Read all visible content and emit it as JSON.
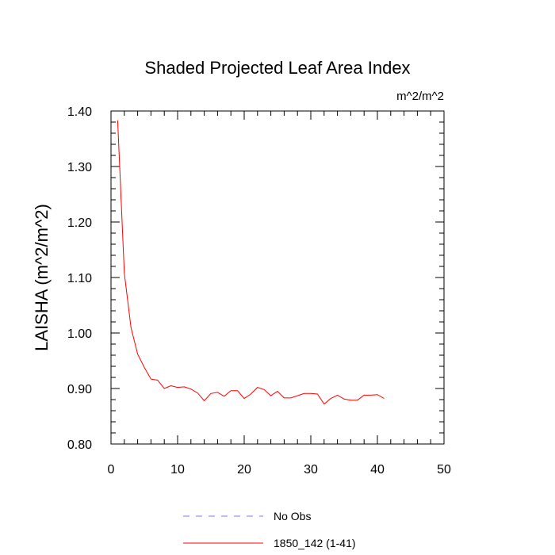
{
  "chart_data": {
    "type": "line",
    "title": "Shaded Projected Leaf Area Index",
    "units_label": "m^2/m^2",
    "xlabel": "",
    "ylabel": "LAISHA  (m^2/m^2)",
    "xlim": [
      0,
      50
    ],
    "ylim": [
      0.8,
      1.4
    ],
    "x_ticks": [
      0,
      10,
      20,
      30,
      40,
      50
    ],
    "x_tick_labels": [
      "0",
      "10",
      "20",
      "30",
      "40",
      "50"
    ],
    "y_ticks": [
      0.8,
      0.9,
      1.0,
      1.1,
      1.2,
      1.3,
      1.4
    ],
    "y_tick_labels": [
      "0.80",
      "0.90",
      "1.00",
      "1.10",
      "1.20",
      "1.30",
      "1.40"
    ],
    "series": [
      {
        "name": "1850_142 (1-41)",
        "color": "#ff0000",
        "style": "solid",
        "x": [
          1,
          2,
          3,
          4,
          5,
          6,
          7,
          8,
          9,
          10,
          11,
          12,
          13,
          14,
          15,
          16,
          17,
          18,
          19,
          20,
          21,
          22,
          23,
          24,
          25,
          26,
          27,
          28,
          29,
          30,
          31,
          32,
          33,
          34,
          35,
          36,
          37,
          38,
          39,
          40,
          41
        ],
        "values": [
          1.383,
          1.108,
          1.01,
          0.962,
          0.938,
          0.917,
          0.915,
          0.9,
          0.905,
          0.902,
          0.903,
          0.899,
          0.892,
          0.878,
          0.891,
          0.893,
          0.886,
          0.896,
          0.896,
          0.882,
          0.89,
          0.902,
          0.898,
          0.887,
          0.895,
          0.883,
          0.883,
          0.887,
          0.891,
          0.891,
          0.89,
          0.872,
          0.882,
          0.888,
          0.881,
          0.879,
          0.879,
          0.888,
          0.888,
          0.889,
          0.882
        ]
      }
    ],
    "legend": [
      {
        "label": "No Obs",
        "color": "#7777ee",
        "style": "dashed"
      },
      {
        "label": "1850_142 (1-41)",
        "color": "#ff0000",
        "style": "solid"
      }
    ]
  }
}
